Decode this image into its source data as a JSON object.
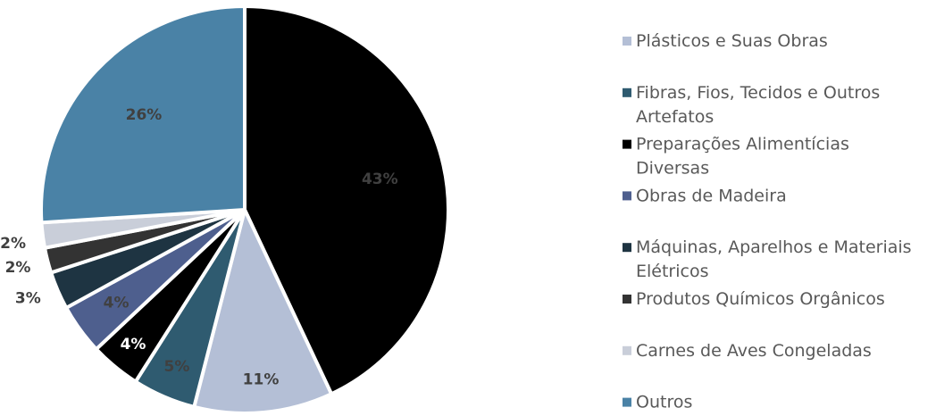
{
  "chart_data": {
    "type": "pie",
    "title": "",
    "categories": [
      "Preparações Alimentícias Diversas",
      "Plásticos e Suas Obras",
      "Fibras, Fios, Tecidos e Outros Artefatos",
      "Preparações Alimentícias Diversas",
      "Obras de Madeira",
      "Máquinas, Aparelhos e Materiais Elétricos",
      "Produtos Químicos Orgânicos",
      "Carnes de Aves Congeladas",
      "Outros"
    ],
    "values": [
      43,
      11,
      5,
      4,
      4,
      3,
      2,
      2,
      26
    ],
    "data_labels": [
      "43%",
      "11%",
      "5%",
      "4%",
      "4%",
      "3%",
      "2%",
      "2%",
      "26%"
    ],
    "colors": [
      "#000000",
      "#b4bfd6",
      "#2f5b70",
      "#000000",
      "#4e5f8e",
      "#1e3442",
      "#333333",
      "#c9ced9",
      "#4a82a6"
    ],
    "label_colors": [
      "#404040",
      "#404040",
      "#404040",
      "#ffffff",
      "#404040",
      "#404040",
      "#404040",
      "#404040",
      "#404040"
    ],
    "legend": {
      "position": "right",
      "entries": [
        {
          "label": "Plásticos e Suas Obras",
          "color": "#b4bfd6"
        },
        {
          "label": "Fibras, Fios, Tecidos e Outros Artefatos",
          "color": "#2f5b70"
        },
        {
          "label": "Preparações Alimentícias Diversas",
          "color": "#000000"
        },
        {
          "label": "Obras de Madeira",
          "color": "#4e5f8e"
        },
        {
          "label": "Máquinas, Aparelhos e Materiais Elétricos",
          "color": "#1e3442"
        },
        {
          "label": "Produtos Químicos Orgânicos",
          "color": "#333333"
        },
        {
          "label": "Carnes de Aves Congeladas",
          "color": "#c9ced9"
        },
        {
          "label": "Outros",
          "color": "#4a82a6"
        }
      ]
    }
  }
}
